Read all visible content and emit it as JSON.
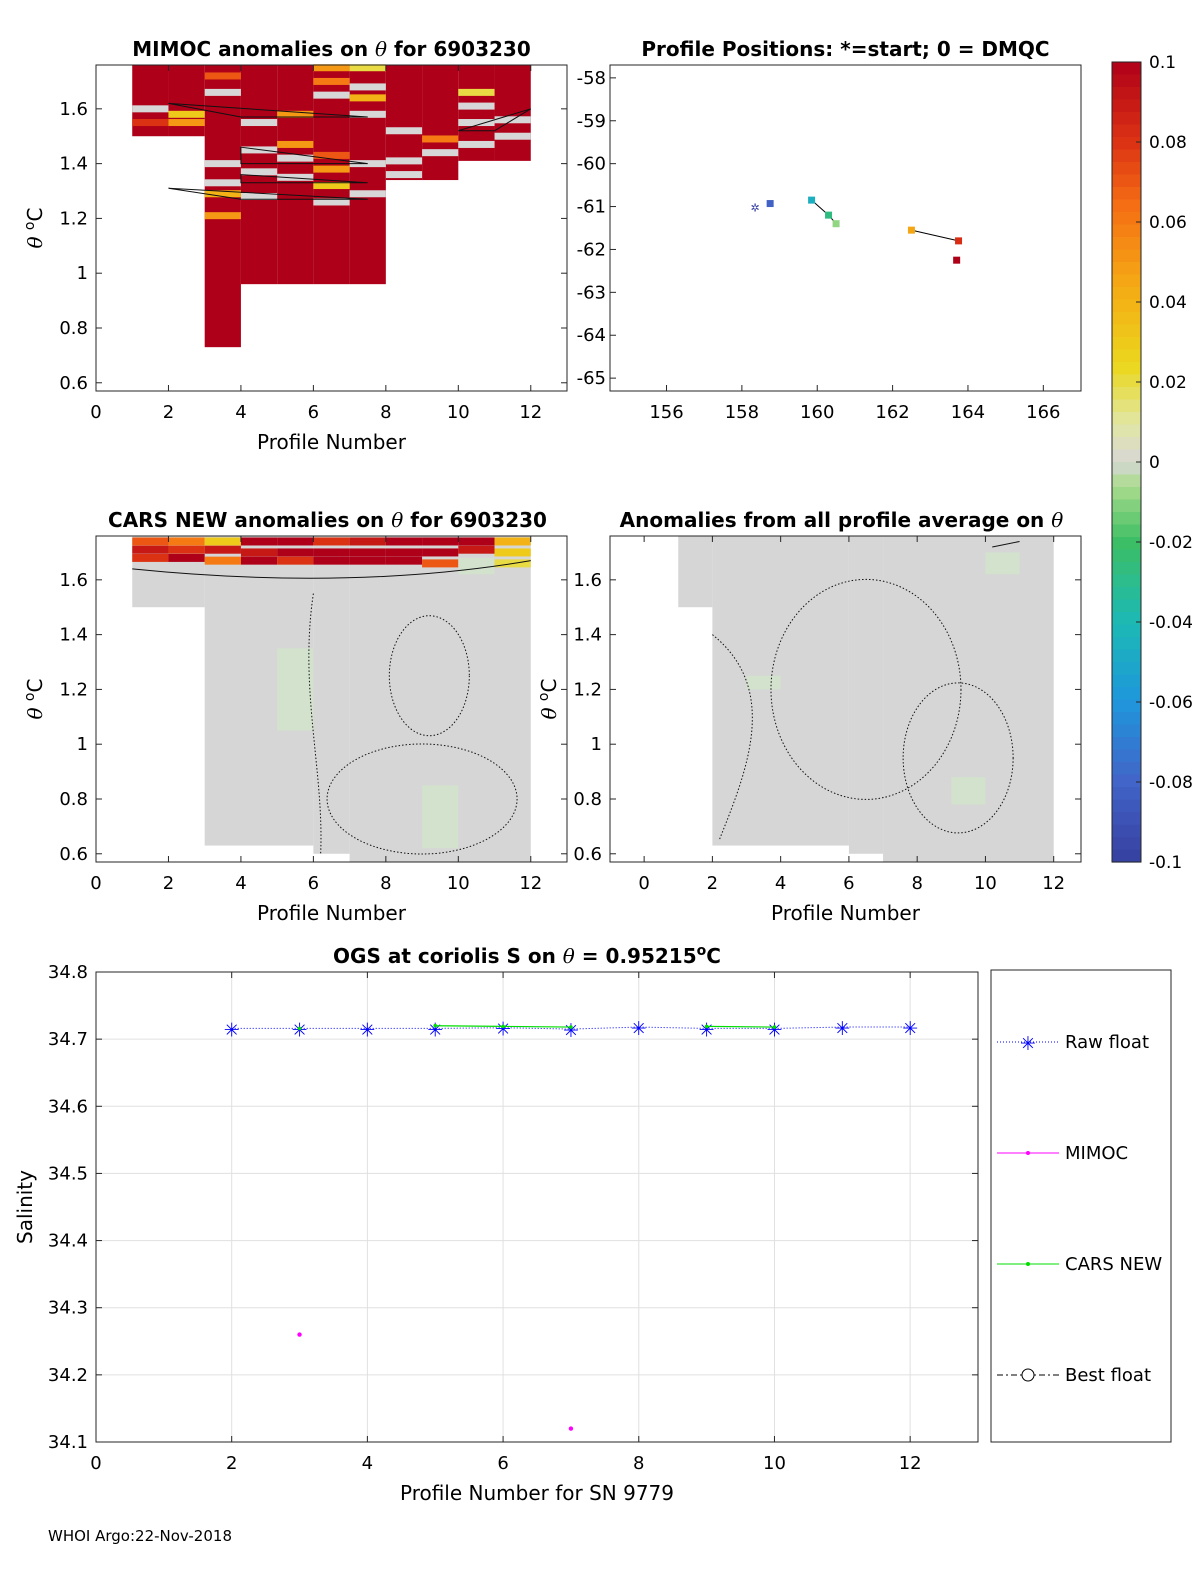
{
  "footer": "WHOI Argo:22-Nov-2018",
  "chart_data": [
    {
      "type": "heatmap",
      "id": "mimoc",
      "title_parts": [
        "MIMOC anomalies on ",
        "θ",
        "  for 6903230"
      ],
      "xlabel": "Profile Number",
      "ylabel": "θ °C",
      "xlim": [
        0,
        13
      ],
      "ylim": [
        0.57,
        1.76
      ],
      "xticks": [
        "0",
        "2",
        "4",
        "6",
        "8",
        "10",
        "12"
      ],
      "yticks": [
        "0.6",
        "0.8",
        "1",
        "1.2",
        "1.4",
        "1.6"
      ],
      "ytick_values": [
        0.6,
        0.8,
        1.0,
        1.2,
        1.4,
        1.6
      ],
      "xtick_values": [
        0,
        2,
        4,
        6,
        8,
        10,
        12
      ],
      "coverage": [
        [
          1,
          2,
          1.5,
          1.76
        ],
        [
          2,
          3,
          1.5,
          1.76
        ],
        [
          3,
          4,
          0.73,
          1.76
        ],
        [
          4,
          5,
          0.96,
          1.76
        ],
        [
          5,
          6,
          0.96,
          1.76
        ],
        [
          6,
          7,
          0.96,
          1.76
        ],
        [
          7,
          8,
          0.96,
          1.76
        ],
        [
          8,
          9,
          1.34,
          1.76
        ],
        [
          9,
          10,
          1.34,
          1.76
        ],
        [
          10,
          11,
          1.41,
          1.76
        ],
        [
          11,
          12,
          1.41,
          1.76
        ]
      ],
      "cells": [
        [
          1,
          1.6,
          0.0
        ],
        [
          1,
          1.55,
          0.08
        ],
        [
          2,
          1.55,
          0.05
        ],
        [
          2,
          1.58,
          0.03
        ],
        [
          3,
          1.72,
          0.07
        ],
        [
          3,
          1.66,
          0.0
        ],
        [
          3,
          1.4,
          0.0
        ],
        [
          3,
          1.33,
          0.0
        ],
        [
          3,
          1.29,
          0.04
        ],
        [
          3,
          1.21,
          0.05
        ],
        [
          4,
          1.55,
          0.0
        ],
        [
          4,
          1.45,
          0.0
        ],
        [
          4,
          1.37,
          0.0
        ],
        [
          4,
          1.28,
          0.0
        ],
        [
          5,
          1.58,
          0.05
        ],
        [
          5,
          1.47,
          0.05
        ],
        [
          5,
          1.42,
          0.0
        ],
        [
          5,
          1.35,
          0.0
        ],
        [
          6,
          1.75,
          0.05
        ],
        [
          6,
          1.7,
          0.06
        ],
        [
          6,
          1.65,
          0.0
        ],
        [
          6,
          1.43,
          0.07
        ],
        [
          6,
          1.38,
          0.05
        ],
        [
          6,
          1.32,
          0.03
        ],
        [
          6,
          1.26,
          0.0
        ],
        [
          7,
          1.75,
          0.02
        ],
        [
          7,
          1.68,
          0.0
        ],
        [
          7,
          1.64,
          0.04
        ],
        [
          7,
          1.58,
          0.0
        ],
        [
          7,
          1.4,
          0.0
        ],
        [
          7,
          1.29,
          0.0
        ],
        [
          8,
          1.52,
          0.0
        ],
        [
          8,
          1.41,
          0.0
        ],
        [
          8,
          1.36,
          0.0
        ],
        [
          9,
          1.49,
          0.06
        ],
        [
          9,
          1.44,
          0.0
        ],
        [
          10,
          1.66,
          0.02
        ],
        [
          10,
          1.61,
          0.0
        ],
        [
          10,
          1.55,
          0.0
        ],
        [
          10,
          1.47,
          0.0
        ],
        [
          11,
          1.56,
          0.0
        ],
        [
          11,
          1.5,
          0.0
        ]
      ]
    },
    {
      "type": "scatter",
      "id": "positions",
      "title": "Profile Positions: *=start; 0 = DMQC",
      "xlim": [
        154.5,
        167.0
      ],
      "ylim": [
        -65.3,
        -57.7
      ],
      "xticks": [
        "156",
        "158",
        "160",
        "162",
        "164",
        "166"
      ],
      "xtick_values": [
        156,
        158,
        160,
        162,
        164,
        166
      ],
      "yticks": [
        "-58",
        "-59",
        "-60",
        "-61",
        "-62",
        "-63",
        "-64",
        "-65"
      ],
      "ytick_values": [
        -58,
        -59,
        -60,
        -61,
        -62,
        -63,
        -64,
        -65
      ],
      "points": [
        {
          "profile": 1,
          "lon": 158.35,
          "lat": -61.0,
          "marker": "star"
        },
        {
          "profile": 2,
          "lon": 158.75,
          "lat": -60.93,
          "marker": "square"
        },
        {
          "profile": 4,
          "lon": 159.85,
          "lat": -60.85,
          "marker": "square"
        },
        {
          "profile": 5,
          "lon": 160.3,
          "lat": -61.2,
          "marker": "square"
        },
        {
          "profile": 6,
          "lon": 160.5,
          "lat": -61.4,
          "marker": "square"
        },
        {
          "profile": 9,
          "lon": 162.5,
          "lat": -61.55,
          "marker": "square"
        },
        {
          "profile": 11,
          "lon": 163.75,
          "lat": -61.8,
          "marker": "square"
        },
        {
          "profile": 12,
          "lon": 163.7,
          "lat": -62.25,
          "marker": "square"
        }
      ]
    },
    {
      "type": "heatmap",
      "id": "cars",
      "title_parts": [
        "CARS NEW anomalies on ",
        "θ",
        " for 6903230"
      ],
      "xlabel": "Profile Number",
      "ylabel": "θ °C",
      "xlim": [
        0,
        13
      ],
      "ylim": [
        0.57,
        1.76
      ],
      "xticks": [
        "0",
        "2",
        "4",
        "6",
        "8",
        "10",
        "12"
      ],
      "xtick_values": [
        0,
        2,
        4,
        6,
        8,
        10,
        12
      ],
      "yticks": [
        "0.6",
        "0.8",
        "1",
        "1.2",
        "1.4",
        "1.6"
      ],
      "ytick_values": [
        0.6,
        0.8,
        1.0,
        1.2,
        1.4,
        1.6
      ],
      "coverage": [
        [
          1,
          3,
          1.5,
          1.76
        ],
        [
          3,
          6,
          0.63,
          1.76
        ],
        [
          6,
          7,
          0.6,
          1.76
        ],
        [
          7,
          12,
          0.57,
          1.76
        ]
      ],
      "cells": [
        [
          1,
          1.74,
          0.07
        ],
        [
          1,
          1.71,
          0.09
        ],
        [
          1,
          1.68,
          0.08
        ],
        [
          2,
          1.74,
          0.06
        ],
        [
          2,
          1.71,
          0.08
        ],
        [
          2,
          1.68,
          0.1
        ],
        [
          3,
          1.74,
          0.03
        ],
        [
          3,
          1.71,
          0.09
        ],
        [
          3,
          1.67,
          0.06
        ],
        [
          4,
          1.74,
          0.1
        ],
        [
          4,
          1.7,
          0.09
        ],
        [
          4,
          1.67,
          0.1
        ],
        [
          5,
          1.74,
          0.1
        ],
        [
          5,
          1.7,
          0.1
        ],
        [
          5,
          1.67,
          0.08
        ],
        [
          6,
          1.74,
          0.08
        ],
        [
          6,
          1.7,
          0.1
        ],
        [
          6,
          1.67,
          0.1
        ],
        [
          7,
          1.74,
          0.09
        ],
        [
          7,
          1.7,
          0.1
        ],
        [
          7,
          1.67,
          0.1
        ],
        [
          8,
          1.74,
          0.1
        ],
        [
          8,
          1.7,
          0.1
        ],
        [
          8,
          1.67,
          0.1
        ],
        [
          9,
          1.74,
          0.1
        ],
        [
          9,
          1.7,
          0.1
        ],
        [
          9,
          1.66,
          0.07
        ],
        [
          10,
          1.74,
          0.1
        ],
        [
          10,
          1.71,
          0.09
        ],
        [
          11,
          1.74,
          0.04
        ],
        [
          11,
          1.7,
          0.03
        ],
        [
          11,
          1.66,
          0.02
        ]
      ]
    },
    {
      "type": "heatmap",
      "id": "avg",
      "title_parts": [
        "Anomalies from all profile average on ",
        "θ"
      ],
      "xlabel": "Profile Number",
      "ylabel": "θ °C",
      "xlim": [
        -1,
        12.8
      ],
      "ylim": [
        0.57,
        1.76
      ],
      "xticks": [
        "0",
        "2",
        "4",
        "6",
        "8",
        "10",
        "12"
      ],
      "xtick_values": [
        0,
        2,
        4,
        6,
        8,
        10,
        12
      ],
      "yticks": [
        "0.6",
        "0.8",
        "1",
        "1.2",
        "1.4",
        "1.6"
      ],
      "ytick_values": [
        0.6,
        0.8,
        1.0,
        1.2,
        1.4,
        1.6
      ],
      "coverage": [
        [
          1,
          2,
          1.5,
          1.76
        ],
        [
          2,
          6,
          0.63,
          1.76
        ],
        [
          6,
          7,
          0.6,
          1.76
        ],
        [
          7,
          12,
          0.57,
          1.76
        ]
      ],
      "cells": []
    },
    {
      "type": "colorbar",
      "id": "colorbar",
      "range": [
        -0.1,
        0.1
      ],
      "ticks": [
        "0.1",
        "0.08",
        "0.06",
        "0.04",
        "0.02",
        "0",
        "-0.02",
        "-0.04",
        "-0.06",
        "-0.08",
        "-0.1"
      ],
      "tick_values": [
        0.1,
        0.08,
        0.06,
        0.04,
        0.02,
        0,
        -0.02,
        -0.04,
        -0.06,
        -0.08,
        -0.1
      ]
    },
    {
      "type": "line",
      "id": "salinity",
      "title_parts": [
        "OGS at coriolis S on ",
        "θ",
        " = 0.95215",
        "o",
        "C"
      ],
      "xlabel": "Profile Number for SN 9779",
      "ylabel": "Salinity",
      "xlim": [
        0,
        13
      ],
      "ylim": [
        34.1,
        34.8
      ],
      "xticks": [
        "0",
        "2",
        "4",
        "6",
        "8",
        "10",
        "12"
      ],
      "xtick_values": [
        0,
        2,
        4,
        6,
        8,
        10,
        12
      ],
      "yticks": [
        "34.1",
        "34.2",
        "34.3",
        "34.4",
        "34.5",
        "34.6",
        "34.7",
        "34.8"
      ],
      "ytick_values": [
        34.1,
        34.2,
        34.3,
        34.4,
        34.5,
        34.6,
        34.7,
        34.8
      ],
      "grid": true,
      "series": [
        {
          "name": "Raw float",
          "color": "#0000ff",
          "marker": "star",
          "style": "dotted",
          "x": [
            2,
            3,
            4,
            5,
            6,
            7,
            8,
            9,
            10,
            11,
            12
          ],
          "y": [
            34.716,
            34.716,
            34.716,
            34.716,
            34.717,
            34.715,
            34.718,
            34.716,
            34.716,
            34.718,
            34.718
          ]
        },
        {
          "name": "MIMOC",
          "color": "#ff00ff",
          "marker": "dot",
          "style": "solid",
          "x": [
            3,
            7
          ],
          "y": [
            34.26,
            34.12
          ]
        },
        {
          "name": "CARS NEW",
          "color": "#00dd00",
          "marker": "dot",
          "style": "solid",
          "x": [
            3,
            5,
            6,
            7,
            9,
            10
          ],
          "y": [
            34.716,
            34.72,
            34.719,
            34.718,
            34.719,
            34.718
          ]
        },
        {
          "name": "Best float",
          "color": "#000000",
          "marker": "circle",
          "style": "dashdot",
          "x": [],
          "y": []
        }
      ],
      "legend_location": "right"
    }
  ]
}
